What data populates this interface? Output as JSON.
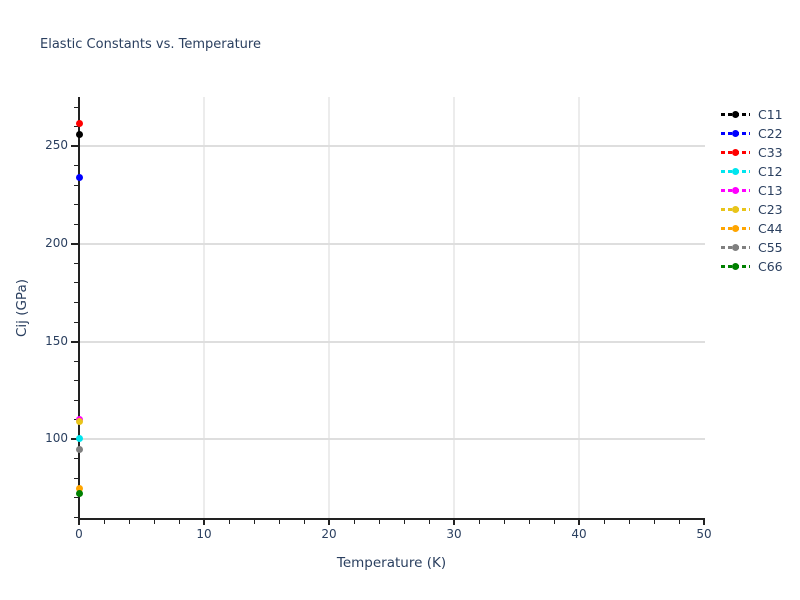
{
  "title": "Elastic Constants vs. Temperature",
  "colors": {
    "text": "#2a3f5f",
    "axis": "#222222",
    "grid_horizontal": "#dedede",
    "grid_vertical": "#ececec",
    "background": "#ffffff"
  },
  "chart_data": {
    "type": "scatter",
    "title": "Elastic Constants vs. Temperature",
    "xlabel": "Temperature (K)",
    "ylabel": "Cij (GPa)",
    "xlim": [
      0,
      50
    ],
    "ylim": [
      59.2,
      275.2
    ],
    "grid": true,
    "legend_position": "right",
    "x_major_ticks": [
      0,
      10,
      20,
      30,
      40,
      50
    ],
    "x_minor_tick_step": 2,
    "x_gridlines": [
      10,
      20,
      30,
      40
    ],
    "y_major_ticks": [
      100,
      150,
      200,
      250
    ],
    "y_minor_tick_step": 10,
    "y_gridlines": [
      100,
      150,
      200,
      250
    ],
    "marker_style": "circle",
    "line_style": "dashed",
    "series": [
      {
        "name": "C11",
        "color": "#000000",
        "x": [
          0
        ],
        "y": [
          256.0
        ]
      },
      {
        "name": "C22",
        "color": "#0000ff",
        "x": [
          0
        ],
        "y": [
          234.0
        ]
      },
      {
        "name": "C33",
        "color": "#ff0000",
        "x": [
          0
        ],
        "y": [
          261.5
        ]
      },
      {
        "name": "C12",
        "color": "#00e5ee",
        "x": [
          0
        ],
        "y": [
          100.5
        ]
      },
      {
        "name": "C13",
        "color": "#ff00ff",
        "x": [
          0
        ],
        "y": [
          110.3
        ]
      },
      {
        "name": "C23",
        "color": "#e8c41a",
        "x": [
          0
        ],
        "y": [
          109.2
        ]
      },
      {
        "name": "C44",
        "color": "#ffa500",
        "x": [
          0
        ],
        "y": [
          75.0
        ]
      },
      {
        "name": "C55",
        "color": "#808080",
        "x": [
          0
        ],
        "y": [
          95.0
        ]
      },
      {
        "name": "C66",
        "color": "#008000",
        "x": [
          0
        ],
        "y": [
          72.5
        ]
      }
    ]
  }
}
